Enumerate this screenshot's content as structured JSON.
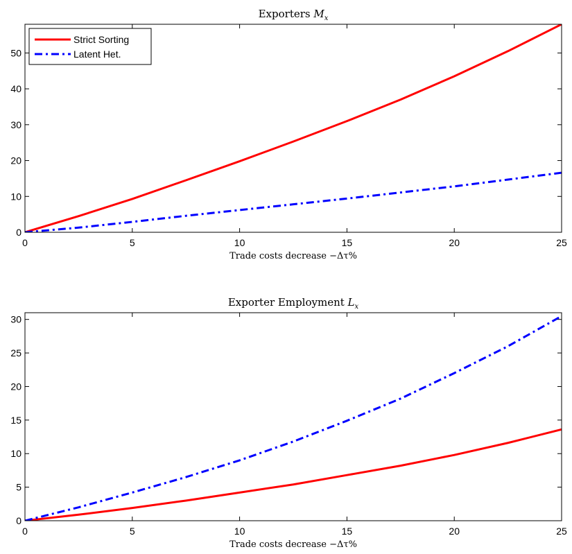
{
  "chart_data": [
    {
      "type": "line",
      "title": "Exporters M_x",
      "title_text": "Exporters ",
      "title_var": "M",
      "title_sub": "x",
      "xlabel": "Trade costs decrease −Δτ%",
      "ylabel": "",
      "xlim": [
        0,
        25
      ],
      "ylim": [
        0,
        58
      ],
      "xticks": [
        0,
        5,
        10,
        15,
        20,
        25
      ],
      "yticks": [
        0,
        10,
        20,
        30,
        40,
        50
      ],
      "grid": false,
      "legend": "top-left",
      "series": [
        {
          "name": "Strict Sorting",
          "color": "#ff0000",
          "style": "solid",
          "x": [
            0,
            2.5,
            5,
            7.5,
            10,
            12.5,
            15,
            17.5,
            20,
            22.5,
            25
          ],
          "y": [
            0,
            4.5,
            9.3,
            14.5,
            19.8,
            25.3,
            31.0,
            37.0,
            43.5,
            50.5,
            58.0
          ]
        },
        {
          "name": "Latent Het.",
          "color": "#0000ff",
          "style": "dashdot",
          "x": [
            0,
            2.5,
            5,
            7.5,
            10,
            12.5,
            15,
            17.5,
            20,
            22.5,
            25
          ],
          "y": [
            0,
            1.3,
            2.9,
            4.6,
            6.2,
            7.8,
            9.4,
            11.1,
            12.8,
            14.7,
            16.6
          ]
        }
      ]
    },
    {
      "type": "line",
      "title": "Exporter Employment L_x",
      "title_text": "Exporter Employment ",
      "title_var": "L",
      "title_sub": "x",
      "xlabel": "Trade costs decrease −Δτ%",
      "ylabel": "",
      "xlim": [
        0,
        25
      ],
      "ylim": [
        0,
        31
      ],
      "xticks": [
        0,
        5,
        10,
        15,
        20,
        25
      ],
      "yticks": [
        0,
        5,
        10,
        15,
        20,
        25,
        30
      ],
      "grid": false,
      "legend": "none",
      "series": [
        {
          "color": "#ff0000",
          "style": "solid",
          "x": [
            0,
            2.5,
            5,
            7.5,
            10,
            12.5,
            15,
            17.5,
            20,
            22.5,
            25
          ],
          "y": [
            0,
            0.9,
            1.9,
            3.0,
            4.2,
            5.4,
            6.8,
            8.2,
            9.8,
            11.6,
            13.6
          ]
        },
        {
          "color": "#0000ff",
          "style": "dashdot",
          "x": [
            0,
            2.5,
            5,
            7.5,
            10,
            12.5,
            15,
            17.5,
            20,
            22.5,
            25
          ],
          "y": [
            0,
            2.0,
            4.2,
            6.5,
            9.0,
            11.8,
            14.9,
            18.2,
            22.0,
            26.0,
            30.5
          ]
        }
      ]
    }
  ]
}
